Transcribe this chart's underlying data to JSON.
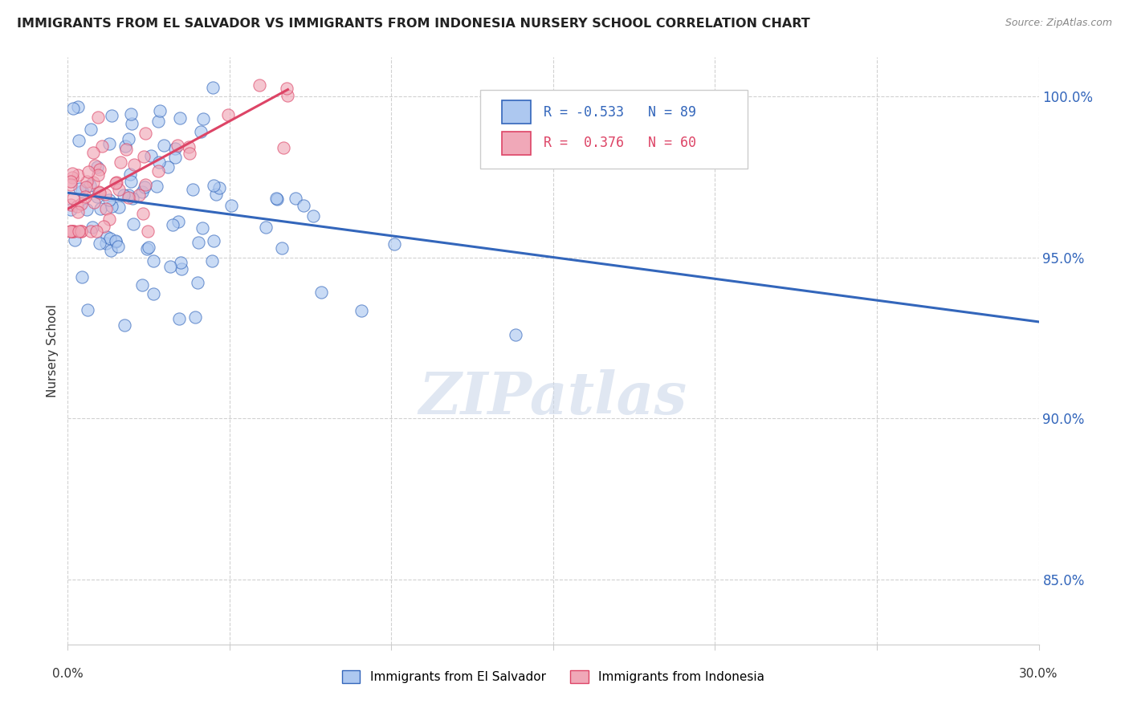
{
  "title": "IMMIGRANTS FROM EL SALVADOR VS IMMIGRANTS FROM INDONESIA NURSERY SCHOOL CORRELATION CHART",
  "source": "Source: ZipAtlas.com",
  "ylabel": "Nursery School",
  "legend_el_salvador": "Immigrants from El Salvador",
  "legend_indonesia": "Immigrants from Indonesia",
  "R_el_salvador": -0.533,
  "N_el_salvador": 89,
  "R_indonesia": 0.376,
  "N_indonesia": 60,
  "xlim": [
    0.0,
    0.3
  ],
  "ylim": [
    0.83,
    1.012
  ],
  "yticks": [
    0.85,
    0.9,
    0.95,
    1.0
  ],
  "ytick_labels": [
    "85.0%",
    "90.0%",
    "95.0%",
    "100.0%"
  ],
  "watermark": "ZIPatlas",
  "color_el_salvador": "#adc8f0",
  "color_indonesia": "#f0a8b8",
  "line_color_el_salvador": "#3366bb",
  "line_color_indonesia": "#dd4466",
  "line_es_x0": 0.0,
  "line_es_y0": 0.97,
  "line_es_x1": 0.3,
  "line_es_y1": 0.93,
  "line_in_x0": 0.0,
  "line_in_y0": 0.965,
  "line_in_x1": 0.068,
  "line_in_y1": 1.002
}
